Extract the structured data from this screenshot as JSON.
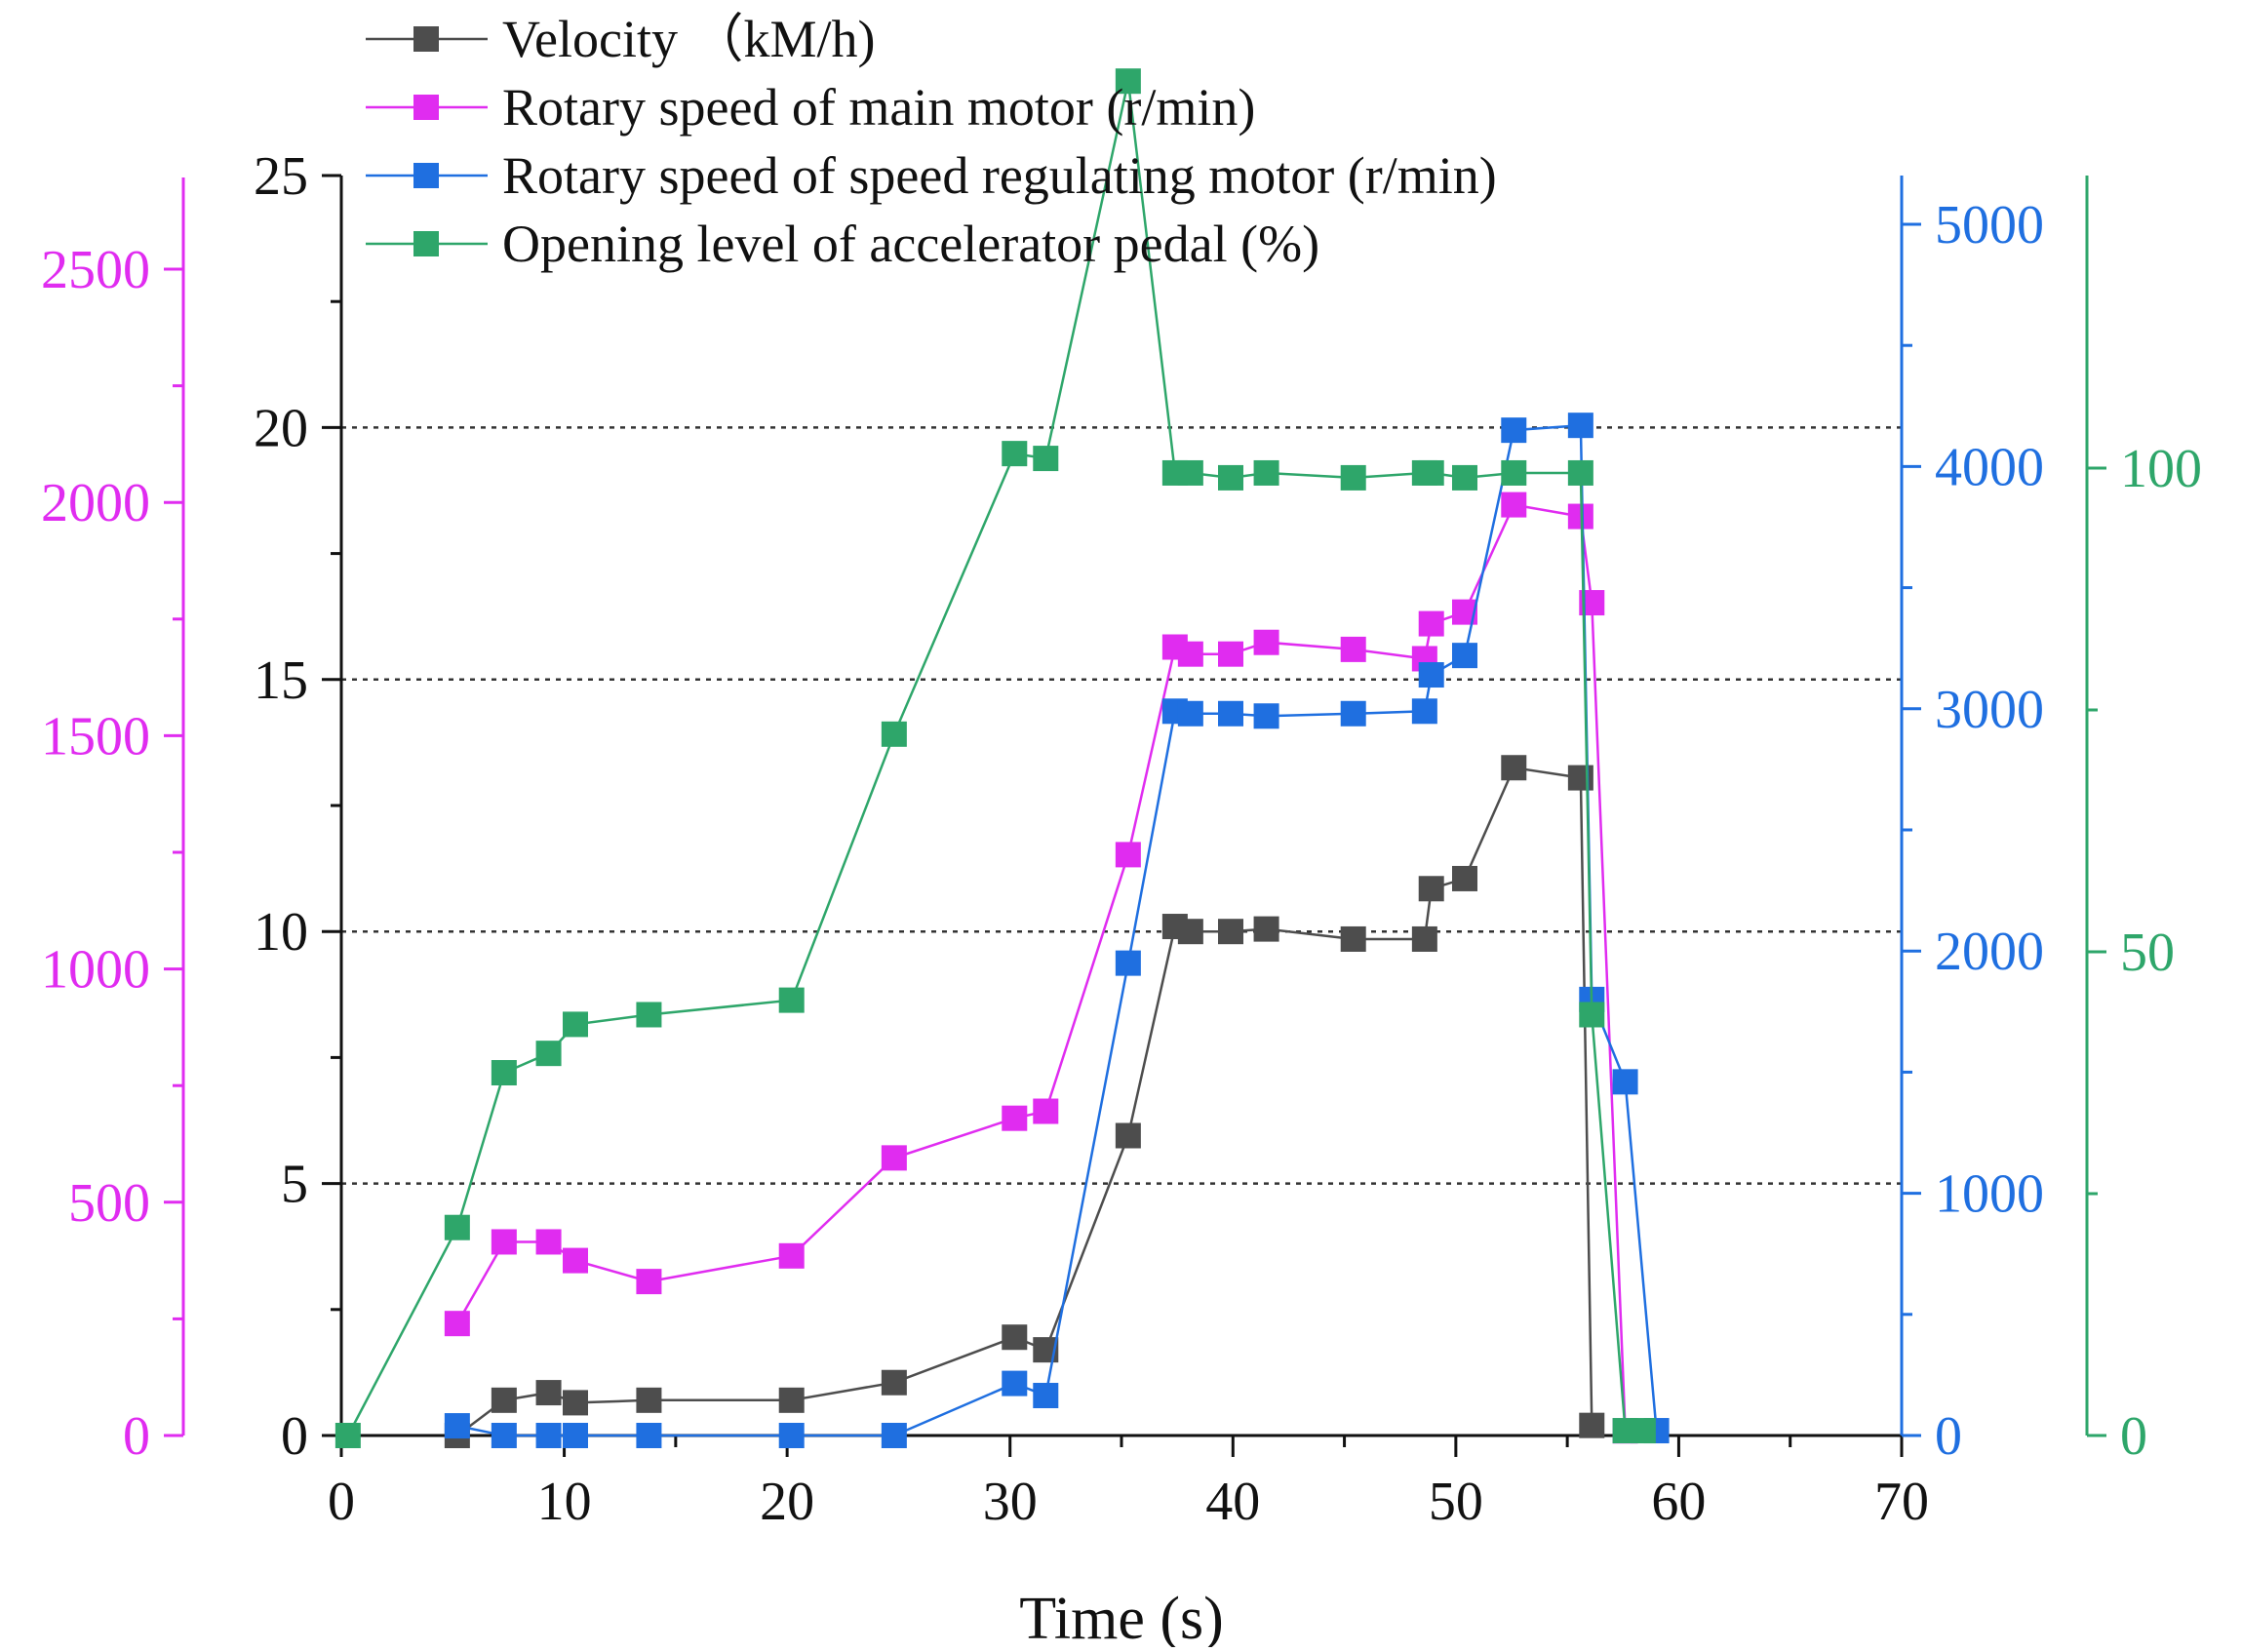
{
  "colors": {
    "velocity": "#4d4d4d",
    "main_motor": "#e02cf0",
    "regulating_motor": "#1f6fe0",
    "pedal": "#2ea66a",
    "axis_black": "#111111",
    "grid": "#333333"
  },
  "chart_data": {
    "type": "line",
    "title": "",
    "xlabel": "Time (s)",
    "xlim": [
      0,
      70
    ],
    "xticks": [
      0,
      10,
      20,
      30,
      40,
      50,
      60,
      70
    ],
    "grid": "horizontal dotted lines at 5, 10, 15, 20 on left velocity axis",
    "legend_position": "top-left",
    "axes": [
      {
        "id": "velocity",
        "position": "left-inner",
        "range": [
          0,
          25
        ],
        "ticks": [
          0,
          5,
          10,
          15,
          20,
          25
        ],
        "tick_labels": [
          "0",
          "5",
          "10",
          "15",
          "20",
          "25"
        ]
      },
      {
        "id": "main_motor",
        "position": "left-outer",
        "range": [
          0,
          2680
        ],
        "ticks": [
          0,
          500,
          1000,
          1500,
          2000,
          2500
        ],
        "tick_labels": [
          "0",
          "500",
          "1000",
          "1500",
          "2000",
          "2500"
        ]
      },
      {
        "id": "regulating_motor",
        "position": "right-inner",
        "range": [
          0,
          5200
        ],
        "ticks": [
          0,
          1000,
          2000,
          3000,
          4000,
          5000
        ],
        "tick_labels": [
          "0",
          "1000",
          "2000",
          "3000",
          "4000",
          "5000"
        ]
      },
      {
        "id": "pedal",
        "position": "right-outer",
        "range": [
          0,
          130
        ],
        "ticks": [
          0,
          50,
          100
        ],
        "tick_labels": [
          "0",
          "50",
          "100"
        ]
      }
    ],
    "series": [
      {
        "name": "Velocity （kM/h)",
        "axis": "velocity",
        "x": [
          5.2,
          7.3,
          9.3,
          10.5,
          13.8,
          20.2,
          24.8,
          30.2,
          31.6,
          35.3,
          37.4,
          38.1,
          39.9,
          41.5,
          45.4,
          48.6,
          48.9,
          50.4,
          52.6,
          55.6,
          56.1
        ],
        "y": [
          0.0,
          0.7,
          0.85,
          0.65,
          0.7,
          0.7,
          1.05,
          1.95,
          1.7,
          5.95,
          10.1,
          10.0,
          10.0,
          10.05,
          9.85,
          9.85,
          10.85,
          11.05,
          13.25,
          13.05,
          0.2
        ]
      },
      {
        "name": "Rotary speed of main motor (r/min)",
        "axis": "main_motor",
        "x": [
          5.2,
          7.3,
          9.3,
          10.5,
          13.8,
          20.2,
          24.8,
          30.2,
          31.6,
          35.3,
          37.4,
          38.1,
          39.9,
          41.5,
          45.4,
          48.6,
          48.9,
          50.4,
          52.6,
          55.6,
          56.1,
          57.6
        ],
        "y": [
          240,
          415,
          415,
          375,
          330,
          385,
          595,
          680,
          695,
          1245,
          1690,
          1675,
          1675,
          1700,
          1685,
          1665,
          1740,
          1765,
          1995,
          1970,
          1785,
          10
        ]
      },
      {
        "name": "Rotary speed of speed regulating motor (r/min)",
        "axis": "regulating_motor",
        "x": [
          5.2,
          7.3,
          9.3,
          10.5,
          13.8,
          20.2,
          24.8,
          30.2,
          31.6,
          35.3,
          37.4,
          38.1,
          39.9,
          41.5,
          45.4,
          48.6,
          48.9,
          50.4,
          52.6,
          55.6,
          56.1,
          57.6,
          59.0
        ],
        "y": [
          40,
          0,
          0,
          0,
          0,
          0,
          0,
          215,
          165,
          1950,
          2990,
          2980,
          2980,
          2970,
          2980,
          2990,
          3140,
          3220,
          4150,
          4170,
          1800,
          1460,
          20
        ]
      },
      {
        "name": "Opening level of accelerator pedal (%)",
        "axis": "pedal",
        "x": [
          0.3,
          5.2,
          7.3,
          9.3,
          10.5,
          13.8,
          20.2,
          24.8,
          30.2,
          31.6,
          35.3,
          37.4,
          38.1,
          39.9,
          41.5,
          45.4,
          48.6,
          48.9,
          50.4,
          52.6,
          55.6,
          56.1,
          57.6,
          58.4
        ],
        "y": [
          0,
          21.5,
          37.5,
          39.5,
          42.5,
          43.5,
          45,
          72.5,
          101.5,
          101,
          140,
          99.5,
          99.5,
          99,
          99.5,
          99,
          99.5,
          99.5,
          99,
          99.5,
          99.5,
          43.5,
          0.5,
          0.5
        ]
      }
    ]
  }
}
